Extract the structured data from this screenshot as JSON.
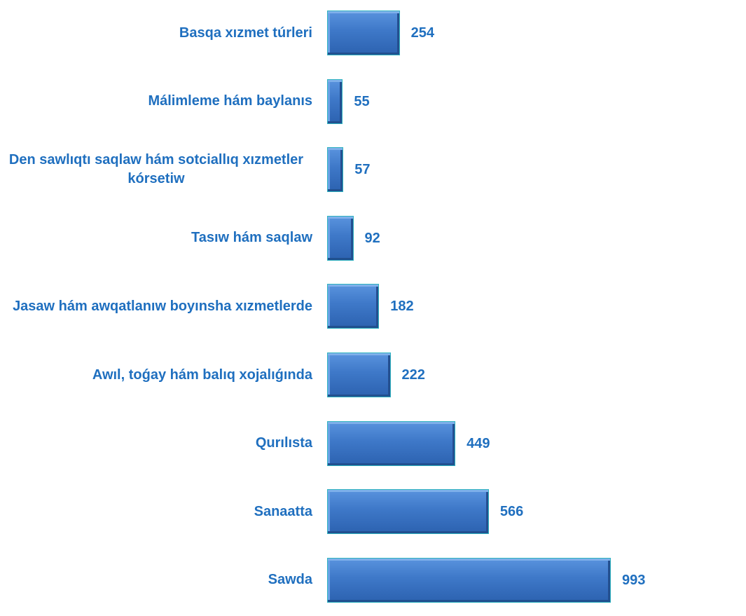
{
  "chart_data": {
    "type": "barh",
    "color": "#3a74c4",
    "categories": [
      "Basqa xızmet túrleri",
      "Málimleme hám baylanıs",
      "Den sawlıqtı saqlaw hám sotciallıq xızmetler kórsetiw",
      "Tasıw hám saqlaw",
      "Jasaw hám awqatlanıw boyınsha xızmetlerde",
      "Awıl, toǵay hám balıq xojalıǵında",
      "Qurılısta",
      "Sanaatta",
      "Sawda"
    ],
    "values": [
      254,
      55,
      57,
      92,
      182,
      222,
      449,
      566,
      993
    ]
  }
}
